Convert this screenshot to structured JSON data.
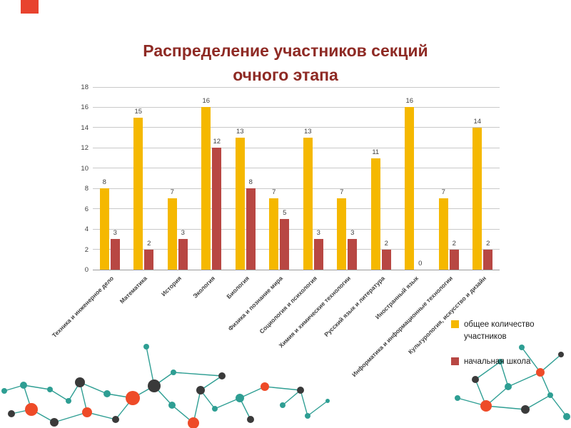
{
  "decor": {
    "corner_color": "#E8432E",
    "teal": "#2E9E93",
    "orange": "#EE4B28",
    "dark": "#3A3A3A"
  },
  "chart_data": {
    "type": "bar",
    "title": "Распределение участников секций очного этапа",
    "title_color": "#8E2A24",
    "categories": [
      "Техника и инженерное дело",
      "Математика",
      "История",
      "Экология",
      "Биология",
      "Физика и познание мира",
      "Социология и психология",
      "Химия и химические технологии",
      "Русский язык и литература",
      "Иностранный язык",
      "Информатика и информационные технологии",
      "Культурология, искусство и дизайн"
    ],
    "series": [
      {
        "name": "общее количество участников",
        "color": "#F5B800",
        "values": [
          8,
          15,
          7,
          16,
          13,
          7,
          13,
          7,
          11,
          16,
          7,
          14
        ]
      },
      {
        "name": "начальная школа",
        "color": "#B84743",
        "values": [
          3,
          2,
          3,
          12,
          8,
          5,
          3,
          3,
          2,
          0,
          2,
          2
        ]
      }
    ],
    "ylim": [
      0,
      18
    ],
    "ytick_step": 2,
    "grid": true,
    "legend_position": "right"
  }
}
